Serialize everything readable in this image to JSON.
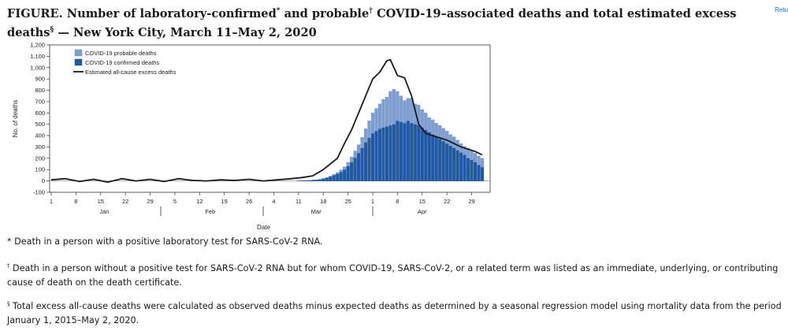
{
  "title": {
    "part1": "FIGURE. Number of laboratory-confirmed",
    "mark1": "*",
    "part2": " and probable",
    "mark2": "†",
    "part3": " COVID-19–associated deaths and total estimated excess deaths",
    "mark3": "§",
    "part4": " — New York City, March 11–May 2, 2020"
  },
  "return_link": "Retu",
  "footnotes": [
    {
      "symbol": "*",
      "text": " Death in a person with a positive laboratory test for SARS-CoV-2 RNA."
    },
    {
      "symbol": "†",
      "text": " Death in a person without a positive test for SARS-CoV-2 RNA but for whom COVID-19, SARS-CoV-2, or a related term was listed as an immediate, underlying, or contributing cause of death on the death certificate."
    },
    {
      "symbol": "§",
      "text": " Total excess all-cause deaths were calculated as observed deaths minus expected deaths as determined by a seasonal regression model using mortality data from the period January 1, 2015–May 2, 2020."
    }
  ],
  "colors": {
    "probable": "#7f9fd2",
    "confirmed": "#1f5aa6",
    "excess_line": "#1a1a1a"
  },
  "chart_data": {
    "type": "bar",
    "xlabel": "Date",
    "ylabel": "No. of deaths",
    "ylim": [
      -100,
      1200
    ],
    "yticks": [
      -100,
      0,
      100,
      200,
      300,
      400,
      500,
      600,
      700,
      800,
      900,
      1000,
      1100,
      1200
    ],
    "ytick_labels": [
      "-100",
      "0",
      "100",
      "200",
      "300",
      "400",
      "500",
      "600",
      "700",
      "800",
      "900",
      "1,000",
      "1,100",
      "1,200"
    ],
    "x_start": "2020-01-01",
    "x_end": "2020-05-02",
    "xticks": [
      {
        "date": "2020-01-01",
        "label": "1"
      },
      {
        "date": "2020-01-08",
        "label": "8"
      },
      {
        "date": "2020-01-15",
        "label": "15"
      },
      {
        "date": "2020-01-22",
        "label": "22"
      },
      {
        "date": "2020-01-29",
        "label": "29"
      },
      {
        "date": "2020-02-05",
        "label": "5"
      },
      {
        "date": "2020-02-12",
        "label": "12"
      },
      {
        "date": "2020-02-19",
        "label": "19"
      },
      {
        "date": "2020-02-26",
        "label": "26"
      },
      {
        "date": "2020-03-04",
        "label": "4"
      },
      {
        "date": "2020-03-11",
        "label": "11"
      },
      {
        "date": "2020-03-18",
        "label": "18"
      },
      {
        "date": "2020-03-25",
        "label": "25"
      },
      {
        "date": "2020-04-01",
        "label": "1"
      },
      {
        "date": "2020-04-08",
        "label": "8"
      },
      {
        "date": "2020-04-15",
        "label": "15"
      },
      {
        "date": "2020-04-22",
        "label": "22"
      },
      {
        "date": "2020-04-29",
        "label": "29"
      }
    ],
    "months": [
      {
        "label": "Jan",
        "center": "2020-01-16"
      },
      {
        "label": "Feb",
        "center": "2020-02-15"
      },
      {
        "label": "Mar",
        "center": "2020-03-16"
      },
      {
        "label": "Apr",
        "center": "2020-04-15"
      }
    ],
    "month_separators": [
      "2020-02-01",
      "2020-03-01",
      "2020-04-01"
    ],
    "legend": {
      "position": "top-left",
      "entries": [
        "COVID-19 probable deaths",
        "COVID-19 confirmed deaths",
        "Estimated all-cause excess deaths"
      ]
    },
    "bar_dates": [
      "2020-03-11",
      "2020-03-12",
      "2020-03-13",
      "2020-03-14",
      "2020-03-15",
      "2020-03-16",
      "2020-03-17",
      "2020-03-18",
      "2020-03-19",
      "2020-03-20",
      "2020-03-21",
      "2020-03-22",
      "2020-03-23",
      "2020-03-24",
      "2020-03-25",
      "2020-03-26",
      "2020-03-27",
      "2020-03-28",
      "2020-03-29",
      "2020-03-30",
      "2020-03-31",
      "2020-04-01",
      "2020-04-02",
      "2020-04-03",
      "2020-04-04",
      "2020-04-05",
      "2020-04-06",
      "2020-04-07",
      "2020-04-08",
      "2020-04-09",
      "2020-04-10",
      "2020-04-11",
      "2020-04-12",
      "2020-04-13",
      "2020-04-14",
      "2020-04-15",
      "2020-04-16",
      "2020-04-17",
      "2020-04-18",
      "2020-04-19",
      "2020-04-20",
      "2020-04-21",
      "2020-04-22",
      "2020-04-23",
      "2020-04-24",
      "2020-04-25",
      "2020-04-26",
      "2020-04-27",
      "2020-04-28",
      "2020-04-29",
      "2020-04-30",
      "2020-05-01",
      "2020-05-02"
    ],
    "series": [
      {
        "name": "COVID-19 confirmed deaths",
        "values": [
          2,
          3,
          4,
          5,
          8,
          10,
          14,
          20,
          28,
          38,
          50,
          62,
          80,
          100,
          130,
          165,
          205,
          245,
          290,
          340,
          380,
          420,
          440,
          460,
          470,
          480,
          490,
          500,
          530,
          520,
          510,
          530,
          510,
          500,
          490,
          470,
          450,
          430,
          410,
          390,
          370,
          350,
          330,
          310,
          290,
          270,
          250,
          230,
          200,
          185,
          165,
          140,
          120
        ]
      },
      {
        "name": "COVID-19 probable deaths",
        "values": [
          0,
          0,
          0,
          0,
          0,
          0,
          1,
          2,
          3,
          5,
          8,
          12,
          18,
          25,
          35,
          45,
          60,
          75,
          95,
          120,
          150,
          180,
          200,
          220,
          250,
          260,
          300,
          310,
          260,
          230,
          200,
          200,
          220,
          180,
          180,
          160,
          150,
          130,
          130,
          120,
          120,
          115,
          110,
          100,
          100,
          90,
          80,
          75,
          90,
          80,
          80,
          80,
          80
        ]
      },
      {
        "name": "Estimated all-cause excess deaths",
        "dates": [
          "2020-01-01",
          "2020-01-05",
          "2020-01-09",
          "2020-01-13",
          "2020-01-17",
          "2020-01-21",
          "2020-01-25",
          "2020-01-29",
          "2020-02-02",
          "2020-02-06",
          "2020-02-10",
          "2020-02-14",
          "2020-02-18",
          "2020-02-22",
          "2020-02-26",
          "2020-03-01",
          "2020-03-05",
          "2020-03-09",
          "2020-03-12",
          "2020-03-15",
          "2020-03-18",
          "2020-03-20",
          "2020-03-22",
          "2020-03-24",
          "2020-03-26",
          "2020-03-28",
          "2020-03-30",
          "2020-04-01",
          "2020-04-03",
          "2020-04-05",
          "2020-04-06",
          "2020-04-07",
          "2020-04-08",
          "2020-04-09",
          "2020-04-10",
          "2020-04-12",
          "2020-04-14",
          "2020-04-16",
          "2020-04-18",
          "2020-04-20",
          "2020-04-22",
          "2020-04-24",
          "2020-04-26",
          "2020-04-28",
          "2020-04-30",
          "2020-05-02"
        ],
        "values": [
          10,
          20,
          -5,
          15,
          -10,
          20,
          0,
          15,
          -5,
          20,
          5,
          0,
          10,
          5,
          15,
          0,
          10,
          20,
          30,
          45,
          100,
          150,
          200,
          330,
          450,
          600,
          750,
          900,
          960,
          1060,
          1070,
          1000,
          930,
          920,
          910,
          750,
          500,
          420,
          400,
          380,
          360,
          330,
          300,
          280,
          260,
          230
        ]
      }
    ]
  }
}
